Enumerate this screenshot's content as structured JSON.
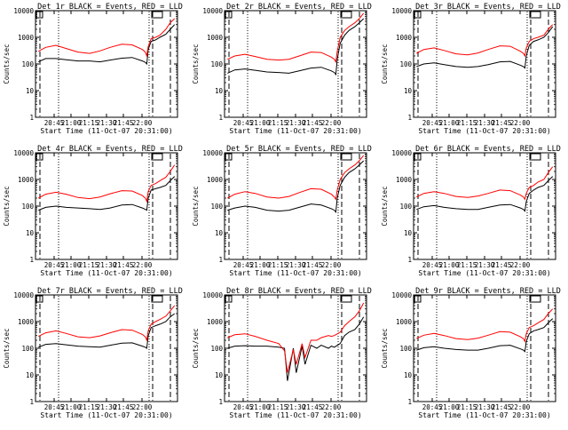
{
  "shared": {
    "ylabel": "Counts/sec",
    "xlabel": "Start Time (11-Oct-07 20:31:00)",
    "x_ticks": [
      "20:45",
      "21:00",
      "21:15",
      "21:30",
      "21:45",
      "22:00"
    ],
    "y_ticks": [
      "1",
      "10",
      "100",
      "1000",
      "10000"
    ],
    "colors": {
      "events": "#000000",
      "lld": "#ff0000"
    }
  },
  "chart_data": [
    {
      "type": "line",
      "title": "Det 1r BLACK = Events, RED = LLD",
      "xlabel": "Start Time (11-Oct-07 20:31:00)",
      "ylabel": "Counts/sec",
      "xlim": [
        "20:31",
        "22:08"
      ],
      "ylim": [
        1,
        10000
      ],
      "yscale": "log",
      "x": [
        "20:33",
        "20:38",
        "20:45",
        "20:52",
        "21:00",
        "21:08",
        "21:15",
        "21:22",
        "21:30",
        "21:37",
        "21:44",
        "21:46",
        "21:47",
        "21:48",
        "21:50",
        "21:53",
        "21:56",
        "22:00",
        "22:03",
        "22:06"
      ],
      "series": [
        {
          "name": "BLACK = Events",
          "values": [
            120,
            160,
            160,
            145,
            130,
            130,
            120,
            140,
            165,
            175,
            130,
            115,
            100,
            350,
            700,
            800,
            1000,
            1300,
            2000,
            3000
          ]
        },
        {
          "name": "RED = LLD",
          "values": [
            300,
            420,
            500,
            380,
            280,
            250,
            310,
            420,
            550,
            520,
            350,
            280,
            200,
            450,
            900,
            1000,
            1200,
            2000,
            3500,
            5000
          ]
        }
      ]
    },
    {
      "type": "line",
      "title": "Det 2r BLACK = Events, RED = LLD",
      "xlabel": "Start Time (11-Oct-07 20:31:00)",
      "ylabel": "Counts/sec",
      "xlim": [
        "20:31",
        "22:08"
      ],
      "ylim": [
        1,
        10000
      ],
      "yscale": "log",
      "x": [
        "20:33",
        "20:38",
        "20:45",
        "20:52",
        "21:00",
        "21:08",
        "21:15",
        "21:22",
        "21:30",
        "21:37",
        "21:44",
        "21:46",
        "21:47",
        "21:48",
        "21:50",
        "21:53",
        "21:56",
        "22:00",
        "22:03",
        "22:06"
      ],
      "series": [
        {
          "name": "BLACK = Events",
          "values": [
            45,
            60,
            65,
            58,
            50,
            48,
            45,
            55,
            70,
            75,
            55,
            48,
            40,
            150,
            600,
            1200,
            1800,
            2500,
            3500,
            5000
          ]
        },
        {
          "name": "RED = LLD",
          "values": [
            150,
            200,
            230,
            190,
            150,
            140,
            150,
            200,
            280,
            270,
            180,
            150,
            120,
            300,
            1000,
            1800,
            2500,
            3500,
            5000,
            8000
          ]
        }
      ]
    },
    {
      "type": "line",
      "title": "Det 3r BLACK = Events, RED = LLD",
      "xlabel": "Start Time (11-Oct-07 20:31:00)",
      "ylabel": "Counts/sec",
      "xlim": [
        "20:31",
        "22:08"
      ],
      "ylim": [
        1,
        10000
      ],
      "yscale": "log",
      "x": [
        "20:33",
        "20:38",
        "20:45",
        "20:52",
        "21:00",
        "21:08",
        "21:15",
        "21:22",
        "21:30",
        "21:37",
        "21:44",
        "21:46",
        "21:47",
        "21:48",
        "21:50",
        "21:53",
        "21:56",
        "22:00",
        "22:03",
        "22:06"
      ],
      "series": [
        {
          "name": "BLACK = Events",
          "values": [
            80,
            100,
            110,
            95,
            80,
            75,
            80,
            95,
            120,
            125,
            90,
            80,
            70,
            200,
            500,
            700,
            800,
            1000,
            1500,
            2500
          ]
        },
        {
          "name": "RED = LLD",
          "values": [
            250,
            350,
            400,
            320,
            240,
            220,
            260,
            350,
            480,
            460,
            300,
            250,
            200,
            400,
            700,
            900,
            1000,
            1200,
            2000,
            3000
          ]
        }
      ]
    },
    {
      "type": "line",
      "title": "Det 4r BLACK = Events, RED = LLD",
      "xlabel": "Start Time (11-Oct-07 20:31:00)",
      "ylabel": "Counts/sec",
      "xlim": [
        "20:31",
        "22:08"
      ],
      "ylim": [
        1,
        10000
      ],
      "yscale": "log",
      "x": [
        "20:33",
        "20:38",
        "20:45",
        "20:52",
        "21:00",
        "21:08",
        "21:15",
        "21:22",
        "21:30",
        "21:37",
        "21:44",
        "21:46",
        "21:47",
        "21:48",
        "21:50",
        "21:53",
        "21:56",
        "22:00",
        "22:03",
        "22:06"
      ],
      "series": [
        {
          "name": "BLACK = Events",
          "values": [
            70,
            90,
            100,
            90,
            85,
            80,
            75,
            85,
            110,
            115,
            85,
            75,
            70,
            200,
            400,
            450,
            500,
            600,
            900,
            1300
          ]
        },
        {
          "name": "RED = LLD",
          "values": [
            200,
            280,
            330,
            280,
            210,
            190,
            220,
            290,
            380,
            370,
            250,
            200,
            150,
            350,
            600,
            700,
            900,
            1200,
            2000,
            3500
          ]
        }
      ]
    },
    {
      "type": "line",
      "title": "Det 5r BLACK = Events, RED = LLD",
      "xlabel": "Start Time (11-Oct-07 20:31:00)",
      "ylabel": "Counts/sec",
      "xlim": [
        "20:31",
        "22:08"
      ],
      "ylim": [
        1,
        10000
      ],
      "yscale": "log",
      "x": [
        "20:33",
        "20:38",
        "20:45",
        "20:52",
        "21:00",
        "21:08",
        "21:15",
        "21:22",
        "21:30",
        "21:37",
        "21:44",
        "21:46",
        "21:47",
        "21:48",
        "21:50",
        "21:53",
        "21:56",
        "22:00",
        "22:03",
        "22:06"
      ],
      "series": [
        {
          "name": "BLACK = Events",
          "values": [
            70,
            85,
            100,
            90,
            70,
            65,
            70,
            90,
            120,
            110,
            80,
            70,
            60,
            200,
            600,
            1200,
            1800,
            2500,
            3500,
            5000
          ]
        },
        {
          "name": "RED = LLD",
          "values": [
            200,
            280,
            350,
            300,
            220,
            200,
            230,
            320,
            450,
            430,
            280,
            220,
            180,
            400,
            1000,
            1800,
            2500,
            3500,
            5000,
            8000
          ]
        }
      ]
    },
    {
      "type": "line",
      "title": "Det 6r BLACK = Events, RED = LLD",
      "xlabel": "Start Time (11-Oct-07 20:31:00)",
      "ylabel": "Counts/sec",
      "xlim": [
        "20:31",
        "22:08"
      ],
      "ylim": [
        1,
        10000
      ],
      "yscale": "log",
      "x": [
        "20:33",
        "20:38",
        "20:45",
        "20:52",
        "21:00",
        "21:08",
        "21:15",
        "21:22",
        "21:30",
        "21:37",
        "21:44",
        "21:46",
        "21:47",
        "21:48",
        "21:50",
        "21:53",
        "21:56",
        "22:00",
        "22:03",
        "22:06"
      ],
      "series": [
        {
          "name": "BLACK = Events",
          "values": [
            75,
            95,
            105,
            90,
            80,
            75,
            75,
            90,
            110,
            115,
            85,
            75,
            65,
            150,
            300,
            400,
            500,
            600,
            900,
            1300
          ]
        },
        {
          "name": "RED = LLD",
          "values": [
            220,
            300,
            350,
            300,
            230,
            210,
            240,
            300,
            400,
            380,
            260,
            220,
            180,
            300,
            500,
            600,
            800,
            1000,
            1800,
            3000
          ]
        }
      ]
    },
    {
      "type": "line",
      "title": "Det 7r BLACK = Events, RED = LLD",
      "xlabel": "Start Time (11-Oct-07 20:31:00)",
      "ylabel": "Counts/sec",
      "xlim": [
        "20:31",
        "22:08"
      ],
      "ylim": [
        1,
        10000
      ],
      "yscale": "log",
      "x": [
        "20:33",
        "20:38",
        "20:45",
        "20:52",
        "21:00",
        "21:08",
        "21:15",
        "21:22",
        "21:30",
        "21:37",
        "21:44",
        "21:46",
        "21:47",
        "21:48",
        "21:50",
        "21:53",
        "21:56",
        "22:00",
        "22:03",
        "22:06"
      ],
      "series": [
        {
          "name": "BLACK = Events",
          "values": [
            110,
            140,
            150,
            135,
            120,
            115,
            110,
            130,
            155,
            160,
            120,
            110,
            100,
            300,
            600,
            700,
            800,
            1000,
            1500,
            2000
          ]
        },
        {
          "name": "RED = LLD",
          "values": [
            280,
            380,
            450,
            360,
            270,
            250,
            290,
            380,
            500,
            480,
            330,
            270,
            200,
            450,
            800,
            1000,
            1200,
            1600,
            2500,
            4000
          ]
        }
      ]
    },
    {
      "type": "line",
      "title": "Det 8r BLACK = Events, RED = LLD",
      "xlabel": "Start Time (11-Oct-07 20:31:00)",
      "ylabel": "Counts/sec",
      "xlim": [
        "20:31",
        "22:08"
      ],
      "ylim": [
        1,
        10000
      ],
      "yscale": "log",
      "x": [
        "20:33",
        "20:38",
        "20:45",
        "20:52",
        "21:00",
        "21:08",
        "21:12",
        "21:14",
        "21:18",
        "21:20",
        "21:24",
        "21:26",
        "21:30",
        "21:34",
        "21:37",
        "21:42",
        "21:44",
        "21:46",
        "21:50",
        "21:53",
        "21:56",
        "22:00",
        "22:03",
        "22:06"
      ],
      "series": [
        {
          "name": "BLACK = Events",
          "values": [
            100,
            120,
            125,
            120,
            120,
            110,
            100,
            6,
            100,
            12,
            120,
            25,
            130,
            100,
            130,
            100,
            120,
            110,
            150,
            300,
            400,
            500,
            800,
            1500
          ]
        },
        {
          "name": "RED = LLD",
          "values": [
            250,
            320,
            350,
            280,
            200,
            150,
            80,
            12,
            90,
            25,
            150,
            45,
            200,
            200,
            250,
            300,
            280,
            300,
            400,
            700,
            1000,
            1500,
            2500,
            5000
          ]
        }
      ]
    },
    {
      "type": "line",
      "title": "Det 9r BLACK = Events, RED = LLD",
      "xlabel": "Start Time (11-Oct-07 20:31:00)",
      "ylabel": "Counts/sec",
      "xlim": [
        "20:31",
        "22:08"
      ],
      "ylim": [
        1,
        10000
      ],
      "yscale": "log",
      "x": [
        "20:33",
        "20:38",
        "20:45",
        "20:52",
        "21:00",
        "21:08",
        "21:15",
        "21:22",
        "21:30",
        "21:37",
        "21:44",
        "21:46",
        "21:47",
        "21:48",
        "21:50",
        "21:53",
        "21:56",
        "22:00",
        "22:03",
        "22:06"
      ],
      "series": [
        {
          "name": "BLACK = Events",
          "values": [
            85,
            105,
            115,
            100,
            90,
            85,
            85,
            100,
            125,
            130,
            95,
            85,
            75,
            180,
            350,
            450,
            500,
            600,
            900,
            1300
          ]
        },
        {
          "name": "RED = LLD",
          "values": [
            230,
            310,
            360,
            300,
            230,
            210,
            240,
            310,
            420,
            400,
            270,
            230,
            180,
            350,
            600,
            700,
            900,
            1200,
            2000,
            3000
          ]
        }
      ]
    }
  ]
}
